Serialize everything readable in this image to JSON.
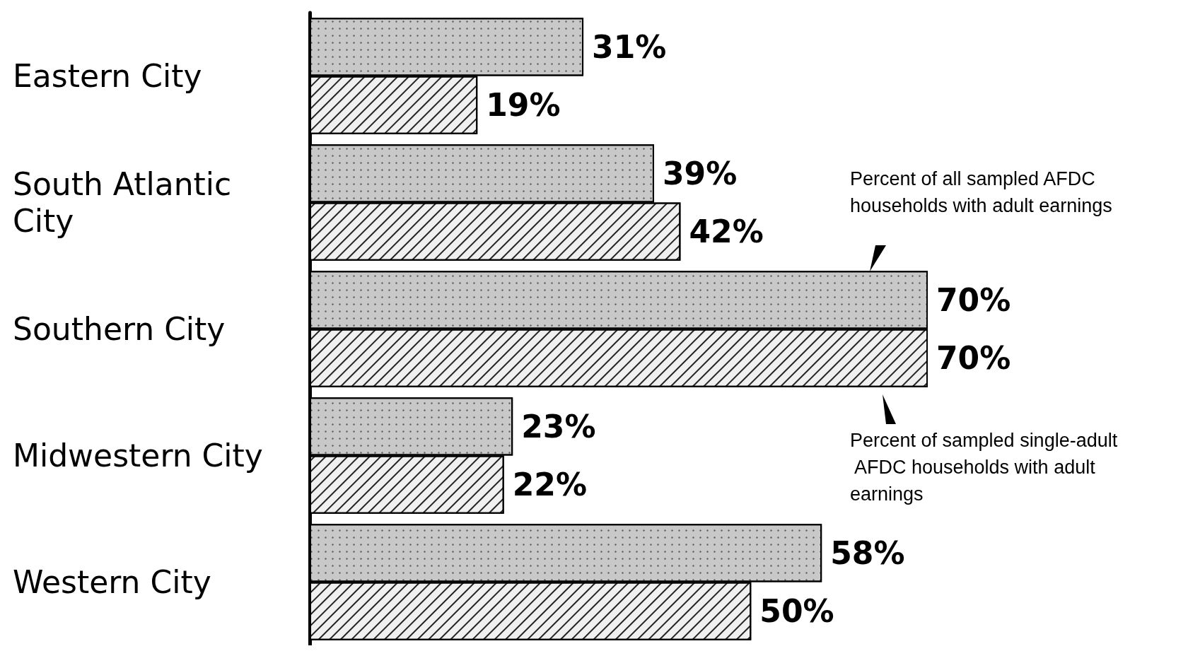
{
  "chart_data": {
    "type": "bar",
    "orientation": "horizontal",
    "categories": [
      "Eastern City",
      "South Atlantic City",
      "Southern City",
      "Midwestern City",
      "Western City"
    ],
    "series": [
      {
        "name": "Percent of all sampled AFDC households with adult earnings",
        "color": "#c8c8c8",
        "values": [
          31,
          39,
          70,
          23,
          58
        ],
        "value_labels": [
          "31%",
          "39%",
          "70%",
          "23%",
          "58%"
        ]
      },
      {
        "name": "Percent of sampled single-adult AFDC households with adult earnings",
        "color": "#f0f0f0",
        "values": [
          19,
          42,
          70,
          22,
          50
        ],
        "value_labels": [
          "19%",
          "42%",
          "70%",
          "22%",
          "50%"
        ]
      }
    ],
    "legend": "right"
  }
}
